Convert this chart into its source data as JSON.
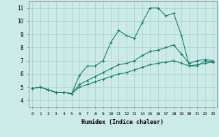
{
  "xlabel": "Humidex (Indice chaleur)",
  "ylabel": "",
  "background_color": "#cceae7",
  "grid_color": "#aad4d0",
  "line_color": "#1a7a6a",
  "xlim": [
    -0.5,
    23.5
  ],
  "ylim": [
    3.5,
    11.5
  ],
  "xticks": [
    0,
    1,
    2,
    3,
    4,
    5,
    6,
    7,
    8,
    9,
    10,
    11,
    12,
    13,
    14,
    15,
    16,
    17,
    18,
    19,
    20,
    21,
    22,
    23
  ],
  "yticks": [
    4,
    5,
    6,
    7,
    8,
    9,
    10,
    11
  ],
  "series1_x": [
    0,
    1,
    2,
    3,
    4,
    5,
    6,
    7,
    8,
    9,
    10,
    11,
    12,
    13,
    14,
    15,
    16,
    17,
    18,
    19,
    20,
    21,
    22,
    23
  ],
  "series1_y": [
    4.9,
    5.0,
    4.8,
    4.6,
    4.6,
    4.5,
    5.9,
    6.6,
    6.6,
    7.0,
    8.4,
    9.3,
    8.9,
    8.7,
    9.9,
    11.0,
    11.0,
    10.4,
    10.6,
    8.9,
    6.6,
    6.6,
    7.0,
    6.9
  ],
  "series2_x": [
    0,
    1,
    2,
    3,
    4,
    5,
    6,
    7,
    8,
    9,
    10,
    11,
    12,
    13,
    14,
    15,
    16,
    17,
    18,
    19,
    20,
    21,
    22,
    23
  ],
  "series2_y": [
    4.9,
    5.0,
    4.8,
    4.6,
    4.6,
    4.5,
    5.2,
    5.5,
    5.8,
    6.1,
    6.4,
    6.7,
    6.8,
    7.0,
    7.4,
    7.7,
    7.8,
    8.0,
    8.2,
    7.5,
    6.8,
    7.0,
    7.1,
    7.0
  ],
  "series3_x": [
    0,
    1,
    2,
    3,
    4,
    5,
    6,
    7,
    8,
    9,
    10,
    11,
    12,
    13,
    14,
    15,
    16,
    17,
    18,
    19,
    20,
    21,
    22,
    23
  ],
  "series3_y": [
    4.9,
    5.0,
    4.8,
    4.6,
    4.6,
    4.5,
    5.0,
    5.2,
    5.4,
    5.6,
    5.8,
    6.0,
    6.1,
    6.3,
    6.5,
    6.7,
    6.8,
    6.9,
    7.0,
    6.8,
    6.6,
    6.7,
    6.8,
    6.9
  ]
}
